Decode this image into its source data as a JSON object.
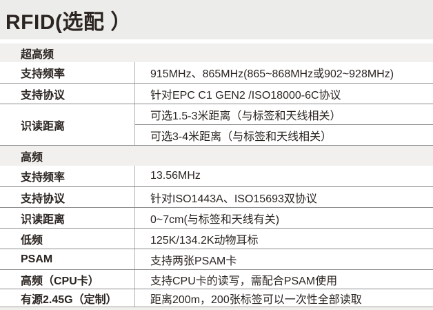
{
  "title": "RFID(选配 ）",
  "colors": {
    "title_band_bg": "#ECEDEB",
    "section_header_bg": "#F1F0EE",
    "bottom_strip_bg": "#EFEFED",
    "row_line": "#8C8C8C",
    "column_divider": "#B3B1AE",
    "text": "#2B2522"
  },
  "uhf": {
    "header": "超高频",
    "rows": [
      {
        "label": "支持频率",
        "value": "915MHz、865MHz(865~868MHz或902~928MHz)"
      },
      {
        "label": "支持协议",
        "value": "针对EPC C1 GEN2 /ISO18000-6C协议"
      }
    ],
    "read_distance": {
      "label": "识读距离",
      "options": [
        "可选1.5-3米距离（与标签和天线相关）",
        "可选3-4米距离（与标签和天线相关）"
      ]
    }
  },
  "hf": {
    "header": "高频",
    "rows": [
      {
        "label": "支持频率",
        "value": "13.56MHz"
      },
      {
        "label": "支持协议",
        "value": "针对ISO1443A、ISO15693双协议"
      },
      {
        "label": "识读距离",
        "value": "0~7cm(与标签和天线有关)"
      },
      {
        "label": "低频",
        "value": "125K/134.2K动物耳标"
      },
      {
        "label": "PSAM",
        "value": "支持两张PSAM卡"
      },
      {
        "label": "高频（CPU卡）",
        "value": "支持CPU卡的读写，需配合PSAM使用"
      },
      {
        "label": "有源2.45G（定制）",
        "value": "距离200m，200张标签可以一次性全部读取"
      }
    ]
  }
}
